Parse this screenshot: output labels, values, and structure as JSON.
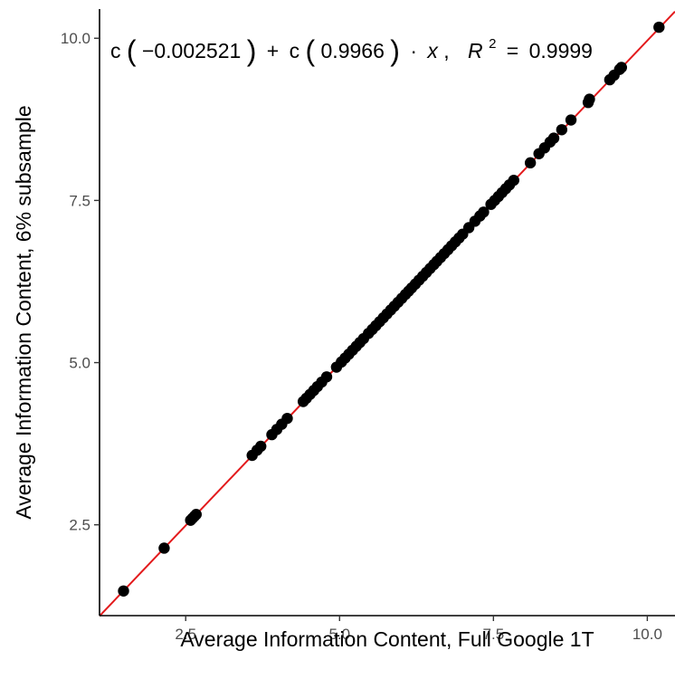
{
  "chart_data": {
    "type": "scatter",
    "title": "",
    "xlabel": "Average Information Content, Full Google 1T",
    "ylabel": "Average Information Content, 6% subsample",
    "xlim": [
      1.1,
      10.45
    ],
    "ylim": [
      1.1,
      10.45
    ],
    "x_ticks": [
      2.5,
      5.0,
      7.5,
      10.0
    ],
    "y_ticks": [
      2.5,
      5.0,
      7.5,
      10.0
    ],
    "x_tick_labels": [
      "2.5",
      "5.0",
      "7.5",
      "10.0"
    ],
    "y_tick_labels": [
      "2.5",
      "5.0",
      "7.5",
      "10.0"
    ],
    "grid": false,
    "fit_line": {
      "intercept": -0.002521,
      "slope": 0.9966,
      "color": "#e31a1c"
    },
    "annotation": {
      "c1": "c",
      "intercept_text": "−0.002521",
      "c2": "c",
      "slope_text": "0.9966",
      "x_var": "x",
      "r_var": "R",
      "r_sup": "2",
      "r2_text": "0.9999"
    },
    "point_color": "#000000",
    "x": [
      1.49,
      2.15,
      2.58,
      2.61,
      2.64,
      2.67,
      3.58,
      3.66,
      3.72,
      3.9,
      3.98,
      4.06,
      4.15,
      4.41,
      4.46,
      4.52,
      4.58,
      4.64,
      4.71,
      4.79,
      4.95,
      5.03,
      5.09,
      5.15,
      5.21,
      5.27,
      5.33,
      5.39,
      5.47,
      5.53,
      5.59,
      5.65,
      5.71,
      5.77,
      5.83,
      5.89,
      5.95,
      6.01,
      6.07,
      6.12,
      6.17,
      6.23,
      6.29,
      6.35,
      6.41,
      6.47,
      6.53,
      6.58,
      6.64,
      6.7,
      6.76,
      6.82,
      6.88,
      6.94,
      7.0,
      7.1,
      7.2,
      7.28,
      7.34,
      7.46,
      7.52,
      7.58,
      7.64,
      7.7,
      7.76,
      7.83,
      8.1,
      8.24,
      8.33,
      8.42,
      8.48,
      8.61,
      8.76,
      9.04,
      9.06,
      9.39,
      9.46,
      9.55,
      9.58,
      10.19
    ],
    "y": [
      1.48,
      2.14,
      2.57,
      2.6,
      2.63,
      2.66,
      3.57,
      3.65,
      3.71,
      3.89,
      3.97,
      4.05,
      4.14,
      4.4,
      4.45,
      4.51,
      4.57,
      4.63,
      4.7,
      4.78,
      4.93,
      5.01,
      5.07,
      5.13,
      5.19,
      5.25,
      5.31,
      5.37,
      5.45,
      5.51,
      5.57,
      5.63,
      5.69,
      5.75,
      5.81,
      5.87,
      5.93,
      5.99,
      6.05,
      6.1,
      6.15,
      6.21,
      6.27,
      6.33,
      6.39,
      6.45,
      6.51,
      6.56,
      6.62,
      6.68,
      6.74,
      6.8,
      6.86,
      6.92,
      6.98,
      7.08,
      7.18,
      7.26,
      7.32,
      7.44,
      7.5,
      7.56,
      7.62,
      7.68,
      7.74,
      7.81,
      8.08,
      8.22,
      8.31,
      8.4,
      8.46,
      8.59,
      8.74,
      9.01,
      9.06,
      9.36,
      9.43,
      9.52,
      9.55,
      10.17
    ]
  }
}
